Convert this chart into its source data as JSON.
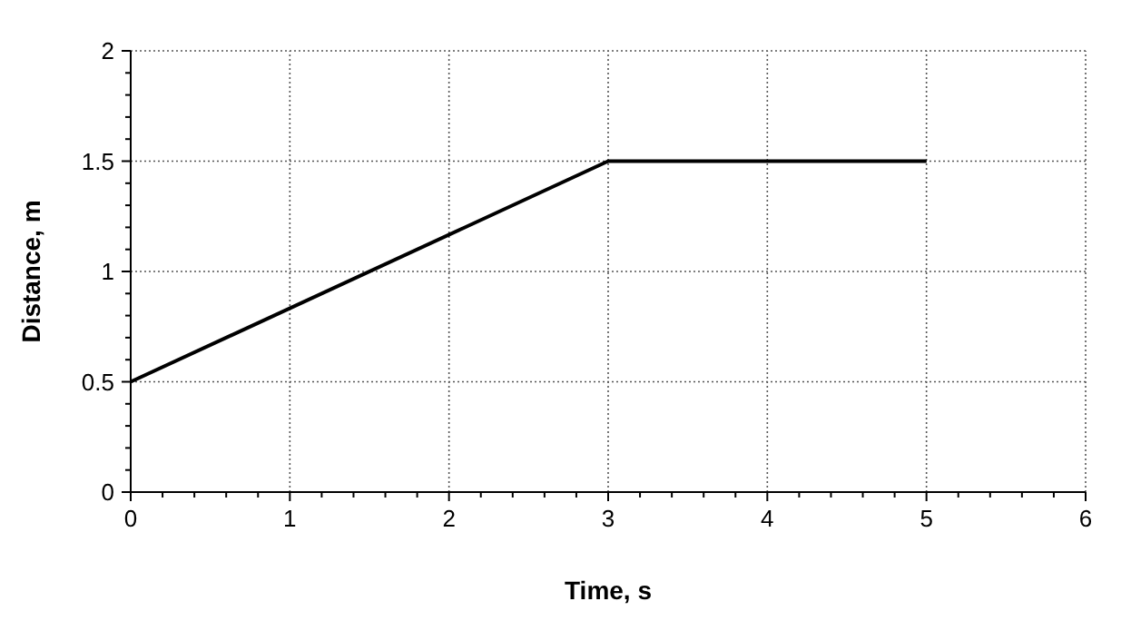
{
  "chart_data": {
    "type": "line",
    "xlabel": "Time, s",
    "ylabel": "Distance, m",
    "x": [
      0,
      3,
      5
    ],
    "series": [
      {
        "color": "#000000",
        "values": [
          0.5,
          1.5,
          1.5
        ]
      }
    ],
    "xlim": [
      0,
      6
    ],
    "ylim": [
      0,
      2
    ],
    "xticks": [
      0,
      {
        "value": 0.2,
        "label": null
      },
      {
        "value": 0.4,
        "label": null
      },
      {
        "value": 0.6,
        "label": null
      },
      {
        "value": 0.8,
        "label": null
      },
      1,
      {
        "value": 1.2,
        "label": null
      },
      {
        "value": 1.4,
        "label": null
      },
      {
        "value": 1.6,
        "label": null
      },
      {
        "value": 1.8,
        "label": null
      },
      2,
      {
        "value": 2.2,
        "label": null
      },
      {
        "value": 2.4,
        "label": null
      },
      {
        "value": 2.6,
        "label": null
      },
      {
        "value": 2.8,
        "label": null
      },
      3,
      {
        "value": 3.2,
        "label": null
      },
      {
        "value": 3.4,
        "label": null
      },
      {
        "value": 3.6,
        "label": null
      },
      {
        "value": 3.8,
        "label": null
      },
      4,
      {
        "value": 4.2,
        "label": null
      },
      {
        "value": 4.4,
        "label": null
      },
      {
        "value": 4.6,
        "label": null
      },
      {
        "value": 4.8,
        "label": null
      },
      5,
      {
        "value": 5.2,
        "label": null
      },
      {
        "value": 5.4,
        "label": null
      },
      {
        "value": 5.6,
        "label": null
      },
      {
        "value": 5.8,
        "label": null
      },
      6
    ],
    "yticks": [
      0,
      {
        "value": 0.1,
        "label": null
      },
      {
        "value": 0.2,
        "label": null
      },
      {
        "value": 0.3,
        "label": null
      },
      {
        "value": 0.4,
        "label": null
      },
      0.5,
      {
        "value": 0.6,
        "label": null
      },
      {
        "value": 0.7,
        "label": null
      },
      {
        "value": 0.8,
        "label": null
      },
      {
        "value": 0.9,
        "label": null
      },
      1,
      {
        "value": 1.1,
        "label": null
      },
      {
        "value": 1.2,
        "label": null
      },
      {
        "value": 1.3,
        "label": null
      },
      {
        "value": 1.4,
        "label": null
      },
      1.5,
      {
        "value": 1.6,
        "label": null
      },
      {
        "value": 1.7,
        "label": null
      },
      {
        "value": 1.8,
        "label": null
      },
      {
        "value": 1.9,
        "label": null
      },
      2
    ],
    "grid": true,
    "marker": "none",
    "line_style": "solid"
  }
}
